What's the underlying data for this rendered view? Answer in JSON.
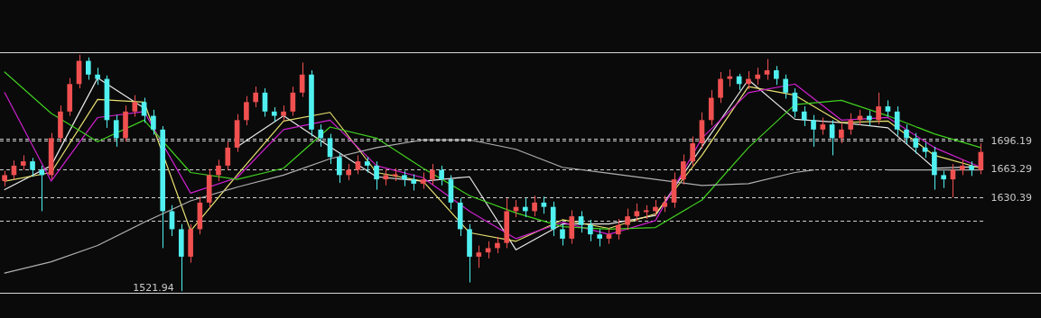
{
  "chart_data": {
    "type": "candlestick",
    "categories": [
      null,
      null,
      null,
      null,
      null,
      null,
      null,
      null,
      null,
      null,
      null,
      null,
      null,
      null,
      null,
      null,
      null,
      null,
      null,
      null,
      null,
      null,
      null,
      null,
      null,
      null,
      null,
      null,
      null,
      null,
      null,
      null,
      null,
      null,
      null,
      null,
      null,
      null,
      null,
      null,
      null,
      null,
      null,
      null,
      null,
      null,
      null,
      null,
      null,
      null,
      null,
      null,
      null,
      null,
      null,
      null,
      null,
      null,
      null,
      null,
      null,
      null,
      null,
      null,
      null,
      null,
      null,
      null,
      null,
      null,
      null,
      null,
      null,
      null,
      null,
      null,
      null,
      null,
      null,
      null,
      null,
      null,
      null,
      null,
      null,
      null,
      null,
      null,
      null,
      null,
      null,
      null,
      null,
      null,
      null,
      null,
      null,
      null,
      null,
      null,
      null,
      null,
      null,
      null,
      null,
      null
    ],
    "ohlc": [
      [
        1650,
        1662,
        1644,
        1657
      ],
      [
        1657,
        1674,
        1652,
        1668
      ],
      [
        1668,
        1680,
        1663,
        1673
      ],
      [
        1673,
        1677,
        1655,
        1663
      ],
      [
        1663,
        1668,
        1615,
        1657
      ],
      [
        1657,
        1706,
        1652,
        1700
      ],
      [
        1700,
        1738,
        1695,
        1731
      ],
      [
        1731,
        1770,
        1726,
        1763
      ],
      [
        1763,
        1797,
        1758,
        1790
      ],
      [
        1790,
        1794,
        1768,
        1774
      ],
      [
        1774,
        1782,
        1762,
        1769
      ],
      [
        1769,
        1773,
        1712,
        1721
      ],
      [
        1721,
        1727,
        1690,
        1700
      ],
      [
        1700,
        1738,
        1696,
        1731
      ],
      [
        1731,
        1750,
        1725,
        1742
      ],
      [
        1742,
        1747,
        1718,
        1726
      ],
      [
        1726,
        1733,
        1704,
        1710
      ],
      [
        1710,
        1714,
        1572,
        1615
      ],
      [
        1615,
        1622,
        1586,
        1594
      ],
      [
        1594,
        1600,
        1521.94,
        1562
      ],
      [
        1562,
        1600,
        1555,
        1594
      ],
      [
        1594,
        1632,
        1588,
        1625
      ],
      [
        1625,
        1664,
        1619,
        1657
      ],
      [
        1657,
        1675,
        1650,
        1668
      ],
      [
        1668,
        1696,
        1663,
        1689
      ],
      [
        1689,
        1728,
        1684,
        1721
      ],
      [
        1721,
        1749,
        1715,
        1742
      ],
      [
        1742,
        1760,
        1736,
        1753
      ],
      [
        1753,
        1758,
        1725,
        1731
      ],
      [
        1731,
        1736,
        1719,
        1726
      ],
      [
        1726,
        1738,
        1720,
        1731
      ],
      [
        1731,
        1760,
        1726,
        1753
      ],
      [
        1753,
        1788,
        1748,
        1774
      ],
      [
        1774,
        1779,
        1702,
        1710
      ],
      [
        1710,
        1716,
        1690,
        1700
      ],
      [
        1700,
        1705,
        1670,
        1678
      ],
      [
        1678,
        1683,
        1648,
        1657
      ],
      [
        1657,
        1670,
        1651,
        1663
      ],
      [
        1663,
        1680,
        1658,
        1673
      ],
      [
        1673,
        1678,
        1660,
        1668
      ],
      [
        1668,
        1673,
        1640,
        1652
      ],
      [
        1652,
        1664,
        1645,
        1657
      ],
      [
        1657,
        1665,
        1650,
        1657
      ],
      [
        1657,
        1662,
        1644,
        1652
      ],
      [
        1652,
        1658,
        1639,
        1647
      ],
      [
        1647,
        1660,
        1641,
        1652
      ],
      [
        1652,
        1670,
        1646,
        1663
      ],
      [
        1663,
        1668,
        1645,
        1652
      ],
      [
        1652,
        1657,
        1617,
        1625
      ],
      [
        1625,
        1630,
        1586,
        1594
      ],
      [
        1594,
        1600,
        1532,
        1562
      ],
      [
        1562,
        1575,
        1549,
        1567
      ],
      [
        1567,
        1580,
        1560,
        1572
      ],
      [
        1572,
        1585,
        1566,
        1578
      ],
      [
        1578,
        1630,
        1572,
        1615
      ],
      [
        1615,
        1628,
        1608,
        1620
      ],
      [
        1620,
        1630,
        1608,
        1615
      ],
      [
        1615,
        1633,
        1609,
        1625
      ],
      [
        1625,
        1632,
        1612,
        1620
      ],
      [
        1620,
        1626,
        1586,
        1594
      ],
      [
        1594,
        1600,
        1575,
        1583
      ],
      [
        1583,
        1616,
        1577,
        1609
      ],
      [
        1609,
        1615,
        1590,
        1599
      ],
      [
        1599,
        1605,
        1580,
        1588
      ],
      [
        1588,
        1594,
        1574,
        1583
      ],
      [
        1583,
        1595,
        1577,
        1588
      ],
      [
        1588,
        1606,
        1582,
        1599
      ],
      [
        1599,
        1618,
        1593,
        1609
      ],
      [
        1609,
        1624,
        1603,
        1615
      ],
      [
        1615,
        1622,
        1606,
        1615
      ],
      [
        1615,
        1628,
        1609,
        1620
      ],
      [
        1620,
        1633,
        1614,
        1625
      ],
      [
        1625,
        1660,
        1619,
        1652
      ],
      [
        1652,
        1681,
        1646,
        1673
      ],
      [
        1673,
        1702,
        1667,
        1694
      ],
      [
        1694,
        1730,
        1688,
        1721
      ],
      [
        1721,
        1756,
        1715,
        1747
      ],
      [
        1747,
        1777,
        1741,
        1769
      ],
      [
        1769,
        1780,
        1760,
        1772
      ],
      [
        1772,
        1775,
        1756,
        1763
      ],
      [
        1763,
        1778,
        1757,
        1769
      ],
      [
        1769,
        1782,
        1762,
        1774
      ],
      [
        1774,
        1792,
        1768,
        1779
      ],
      [
        1779,
        1784,
        1762,
        1769
      ],
      [
        1769,
        1774,
        1746,
        1753
      ],
      [
        1753,
        1758,
        1724,
        1731
      ],
      [
        1731,
        1737,
        1714,
        1721
      ],
      [
        1721,
        1727,
        1690,
        1710
      ],
      [
        1710,
        1724,
        1704,
        1716
      ],
      [
        1716,
        1721,
        1680,
        1700
      ],
      [
        1700,
        1718,
        1694,
        1710
      ],
      [
        1710,
        1729,
        1704,
        1721
      ],
      [
        1721,
        1733,
        1715,
        1726
      ],
      [
        1726,
        1732,
        1714,
        1721
      ],
      [
        1721,
        1753,
        1716,
        1737
      ],
      [
        1737,
        1744,
        1725,
        1731
      ],
      [
        1731,
        1737,
        1703,
        1710
      ],
      [
        1710,
        1716,
        1693,
        1700
      ],
      [
        1700,
        1706,
        1682,
        1689
      ],
      [
        1689,
        1695,
        1677,
        1684
      ],
      [
        1684,
        1690,
        1640,
        1657
      ],
      [
        1657,
        1662,
        1642,
        1652
      ],
      [
        1652,
        1670,
        1631,
        1663
      ],
      [
        1663,
        1675,
        1657,
        1668
      ],
      [
        1668,
        1673,
        1656,
        1663
      ],
      [
        1663,
        1694,
        1658,
        1684
      ]
    ],
    "colors": [
      "#f05050",
      "#f05050",
      "#f05050",
      "#50f0f0",
      "#50f0f0",
      "#f05050",
      "#f05050",
      "#f05050",
      "#f05050",
      "#50f0f0",
      "#50f0f0",
      "#50f0f0",
      "#50f0f0",
      "#f05050",
      "#f05050",
      "#50f0f0",
      "#50f0f0",
      "#50f0f0",
      "#50f0f0",
      "#50f0f0",
      "#f05050",
      "#f05050",
      "#f05050",
      "#f05050",
      "#f05050",
      "#f05050",
      "#f05050",
      "#f05050",
      "#50f0f0",
      "#50f0f0",
      "#f05050",
      "#f05050",
      "#f05050",
      "#50f0f0",
      "#50f0f0",
      "#50f0f0",
      "#50f0f0",
      "#f05050",
      "#f05050",
      "#50f0f0",
      "#50f0f0",
      "#f05050",
      "#f05050",
      "#50f0f0",
      "#50f0f0",
      "#f05050",
      "#f05050",
      "#50f0f0",
      "#50f0f0",
      "#50f0f0",
      "#50f0f0",
      "#f05050",
      "#f05050",
      "#f05050",
      "#f05050",
      "#f05050",
      "#50f0f0",
      "#f05050",
      "#50f0f0",
      "#50f0f0",
      "#50f0f0",
      "#f05050",
      "#50f0f0",
      "#50f0f0",
      "#50f0f0",
      "#f05050",
      "#f05050",
      "#f05050",
      "#f05050",
      "#f05050",
      "#f05050",
      "#f05050",
      "#f05050",
      "#f05050",
      "#f05050",
      "#f05050",
      "#f05050",
      "#f05050",
      "#f05050",
      "#50f0f0",
      "#f05050",
      "#f05050",
      "#f05050",
      "#50f0f0",
      "#50f0f0",
      "#50f0f0",
      "#50f0f0",
      "#50f0f0",
      "#f05050",
      "#50f0f0",
      "#f05050",
      "#f05050",
      "#f05050",
      "#50f0f0",
      "#f05050",
      "#50f0f0",
      "#50f0f0",
      "#50f0f0",
      "#50f0f0",
      "#50f0f0",
      "#50f0f0",
      "#50f0f0",
      "#f05050",
      "#f05050",
      "#50f0f0",
      "#f05050"
    ],
    "series": [
      {
        "type": "line",
        "color": "#e8e8e8",
        "values": [
          1640,
          null,
          null,
          null,
          null,
          1668,
          null,
          null,
          null,
          null,
          1770,
          null,
          null,
          null,
          null,
          1735,
          null,
          null,
          null,
          null,
          null,
          null,
          null,
          null,
          null,
          1690,
          null,
          null,
          null,
          null,
          1726,
          null,
          null,
          null,
          null,
          1690,
          null,
          null,
          null,
          null,
          1655,
          null,
          null,
          null,
          null,
          1650,
          null,
          null,
          null,
          null,
          1655,
          null,
          null,
          null,
          null,
          1570,
          null,
          null,
          null,
          null,
          1600,
          null,
          null,
          null,
          null,
          1600,
          null,
          null,
          null,
          null,
          1610,
          null,
          null,
          null,
          null,
          1690,
          null,
          null,
          null,
          null,
          1768,
          null,
          null,
          null,
          null,
          1722,
          null,
          null,
          null,
          null,
          1718,
          null,
          null,
          null,
          null,
          1712,
          null,
          null,
          null,
          null,
          1665,
          null,
          null,
          null,
          null,
          1667
        ]
      },
      {
        "type": "line",
        "color": "#e8e070",
        "values": [
          1650,
          null,
          null,
          null,
          null,
          1660,
          null,
          null,
          null,
          null,
          1745,
          null,
          null,
          null,
          null,
          1742,
          null,
          null,
          null,
          null,
          1592,
          null,
          null,
          null,
          null,
          1657,
          null,
          null,
          null,
          null,
          1720,
          null,
          null,
          null,
          null,
          1730,
          null,
          null,
          null,
          null,
          1660,
          null,
          null,
          null,
          null,
          1650,
          null,
          null,
          null,
          null,
          1590,
          null,
          null,
          null,
          null,
          1580,
          null,
          null,
          null,
          null,
          1605,
          null,
          null,
          null,
          null,
          1595,
          null,
          null,
          null,
          null,
          1612,
          null,
          null,
          null,
          null,
          1680,
          null,
          null,
          null,
          null,
          1760,
          null,
          null,
          null,
          null,
          1750,
          null,
          null,
          null,
          null,
          1718,
          null,
          null,
          null,
          null,
          1720,
          null,
          null,
          null,
          null,
          1680,
          null,
          null,
          null,
          null,
          1665
        ]
      },
      {
        "type": "line",
        "color": "#d020d0",
        "values": [
          1753,
          null,
          null,
          null,
          null,
          1650,
          null,
          null,
          null,
          null,
          1724,
          null,
          null,
          null,
          null,
          1731,
          null,
          null,
          null,
          null,
          1636,
          null,
          null,
          null,
          null,
          1654,
          null,
          null,
          null,
          null,
          1710,
          null,
          null,
          null,
          null,
          1721,
          null,
          null,
          null,
          null,
          1668,
          null,
          null,
          null,
          null,
          1654,
          null,
          null,
          null,
          null,
          1615,
          null,
          null,
          null,
          null,
          1583,
          null,
          null,
          null,
          null,
          1602,
          null,
          null,
          null,
          null,
          1588,
          null,
          null,
          null,
          null,
          1604,
          null,
          null,
          null,
          null,
          1700,
          null,
          null,
          null,
          null,
          1753,
          null,
          null,
          null,
          null,
          1763,
          null,
          null,
          null,
          null,
          1721,
          null,
          null,
          null,
          null,
          1724,
          null,
          null,
          null,
          null,
          1689,
          null,
          null,
          null,
          null,
          1666
        ]
      },
      {
        "type": "line",
        "color": "#40d020",
        "values": [
          1777,
          null,
          null,
          null,
          null,
          1729,
          null,
          null,
          null,
          null,
          1696,
          null,
          null,
          null,
          null,
          1721,
          null,
          null,
          null,
          null,
          1660,
          null,
          null,
          null,
          null,
          1652,
          null,
          null,
          null,
          null,
          1665,
          null,
          null,
          null,
          null,
          1713,
          null,
          null,
          null,
          null,
          1700,
          null,
          null,
          null,
          null,
          1665,
          null,
          null,
          null,
          null,
          1633,
          null,
          null,
          null,
          null,
          1613,
          null,
          null,
          null,
          null,
          1597,
          null,
          null,
          null,
          null,
          1594,
          null,
          null,
          null,
          null,
          1596,
          null,
          null,
          null,
          null,
          1628,
          null,
          null,
          null,
          null,
          1689,
          null,
          null,
          null,
          null,
          1739,
          null,
          null,
          null,
          null,
          1744,
          null,
          null,
          null,
          null,
          1726,
          null,
          null,
          null,
          null,
          1705,
          null,
          null,
          null,
          null,
          1689
        ]
      },
      {
        "type": "line",
        "color": "#b0b0b0",
        "values": [
          1543,
          null,
          null,
          null,
          null,
          1556,
          null,
          null,
          null,
          null,
          1575,
          null,
          null,
          null,
          null,
          1602,
          null,
          null,
          null,
          null,
          1627,
          null,
          null,
          null,
          null,
          1643,
          null,
          null,
          null,
          null,
          1657,
          null,
          null,
          null,
          null,
          1676,
          null,
          null,
          null,
          null,
          1689,
          null,
          null,
          null,
          null,
          1698,
          null,
          null,
          null,
          null,
          1698,
          null,
          null,
          null,
          null,
          1687,
          null,
          null,
          null,
          null,
          1666,
          null,
          null,
          null,
          null,
          1659,
          null,
          null,
          null,
          null,
          1652,
          null,
          null,
          null,
          null,
          1645,
          null,
          null,
          null,
          null,
          1647,
          null,
          null,
          null,
          null,
          1660,
          null,
          1663,
          null,
          null,
          null,
          null,
          null,
          null,
          null,
          1663,
          null,
          null,
          null,
          null,
          1663,
          null,
          null,
          null,
          null,
          1663
        ]
      }
    ],
    "ylim": [
      1520,
      1800
    ],
    "yticks": [
      {
        "value": 1603,
        "label": null
      },
      1630.39,
      1663.29,
      1696.19,
      {
        "value": 1699,
        "label": null
      }
    ],
    "grid": "y",
    "tick_labels": "y",
    "annotations": [
      "1521.94"
    ]
  }
}
